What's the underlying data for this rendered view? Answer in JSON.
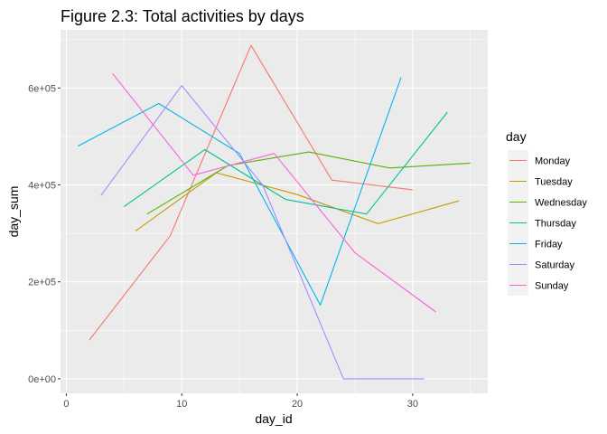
{
  "chart_data": {
    "type": "line",
    "title": "Figure 2.3: Total activities by days",
    "xlabel": "day_id",
    "ylabel": "day_sum",
    "xlim": [
      -0.5,
      36.5
    ],
    "ylim": [
      -30000,
      720000
    ],
    "x_ticks": [
      0,
      10,
      20,
      30
    ],
    "x_tick_labels": [
      "0",
      "10",
      "20",
      "30"
    ],
    "y_ticks": [
      0,
      200000,
      400000,
      600000
    ],
    "y_tick_labels": [
      "0e+00",
      "2e+05",
      "4e+05",
      "6e+05"
    ],
    "grid": true,
    "legend": {
      "title": "day",
      "position": "right"
    },
    "series": [
      {
        "name": "Monday",
        "color": "#F8766D",
        "x": [
          2,
          9,
          16,
          23,
          30
        ],
        "y": [
          80000,
          295000,
          688000,
          410000,
          390000
        ]
      },
      {
        "name": "Tuesday",
        "color": "#C49A00",
        "x": [
          6,
          13,
          20,
          27,
          34
        ],
        "y": [
          305000,
          425000,
          380000,
          320000,
          367000
        ]
      },
      {
        "name": "Wednesday",
        "color": "#53B400",
        "x": [
          7,
          14,
          21,
          28,
          35
        ],
        "y": [
          340000,
          440000,
          468000,
          435000,
          445000
        ]
      },
      {
        "name": "Thursday",
        "color": "#00C094",
        "x": [
          5,
          12,
          19,
          26,
          33
        ],
        "y": [
          355000,
          473000,
          370000,
          340000,
          550000
        ]
      },
      {
        "name": "Friday",
        "color": "#00B6EB",
        "x": [
          1,
          8,
          15,
          22,
          29
        ],
        "y": [
          480000,
          568000,
          465000,
          152000,
          622000
        ]
      },
      {
        "name": "Saturday",
        "color": "#A58AFF",
        "x": [
          3,
          10,
          17,
          24,
          31
        ],
        "y": [
          378000,
          605000,
          400000,
          0,
          0
        ]
      },
      {
        "name": "Sunday",
        "color": "#FB61D7",
        "x": [
          4,
          11,
          18,
          25,
          32
        ],
        "y": [
          630000,
          420000,
          465000,
          260000,
          138000
        ]
      }
    ]
  }
}
